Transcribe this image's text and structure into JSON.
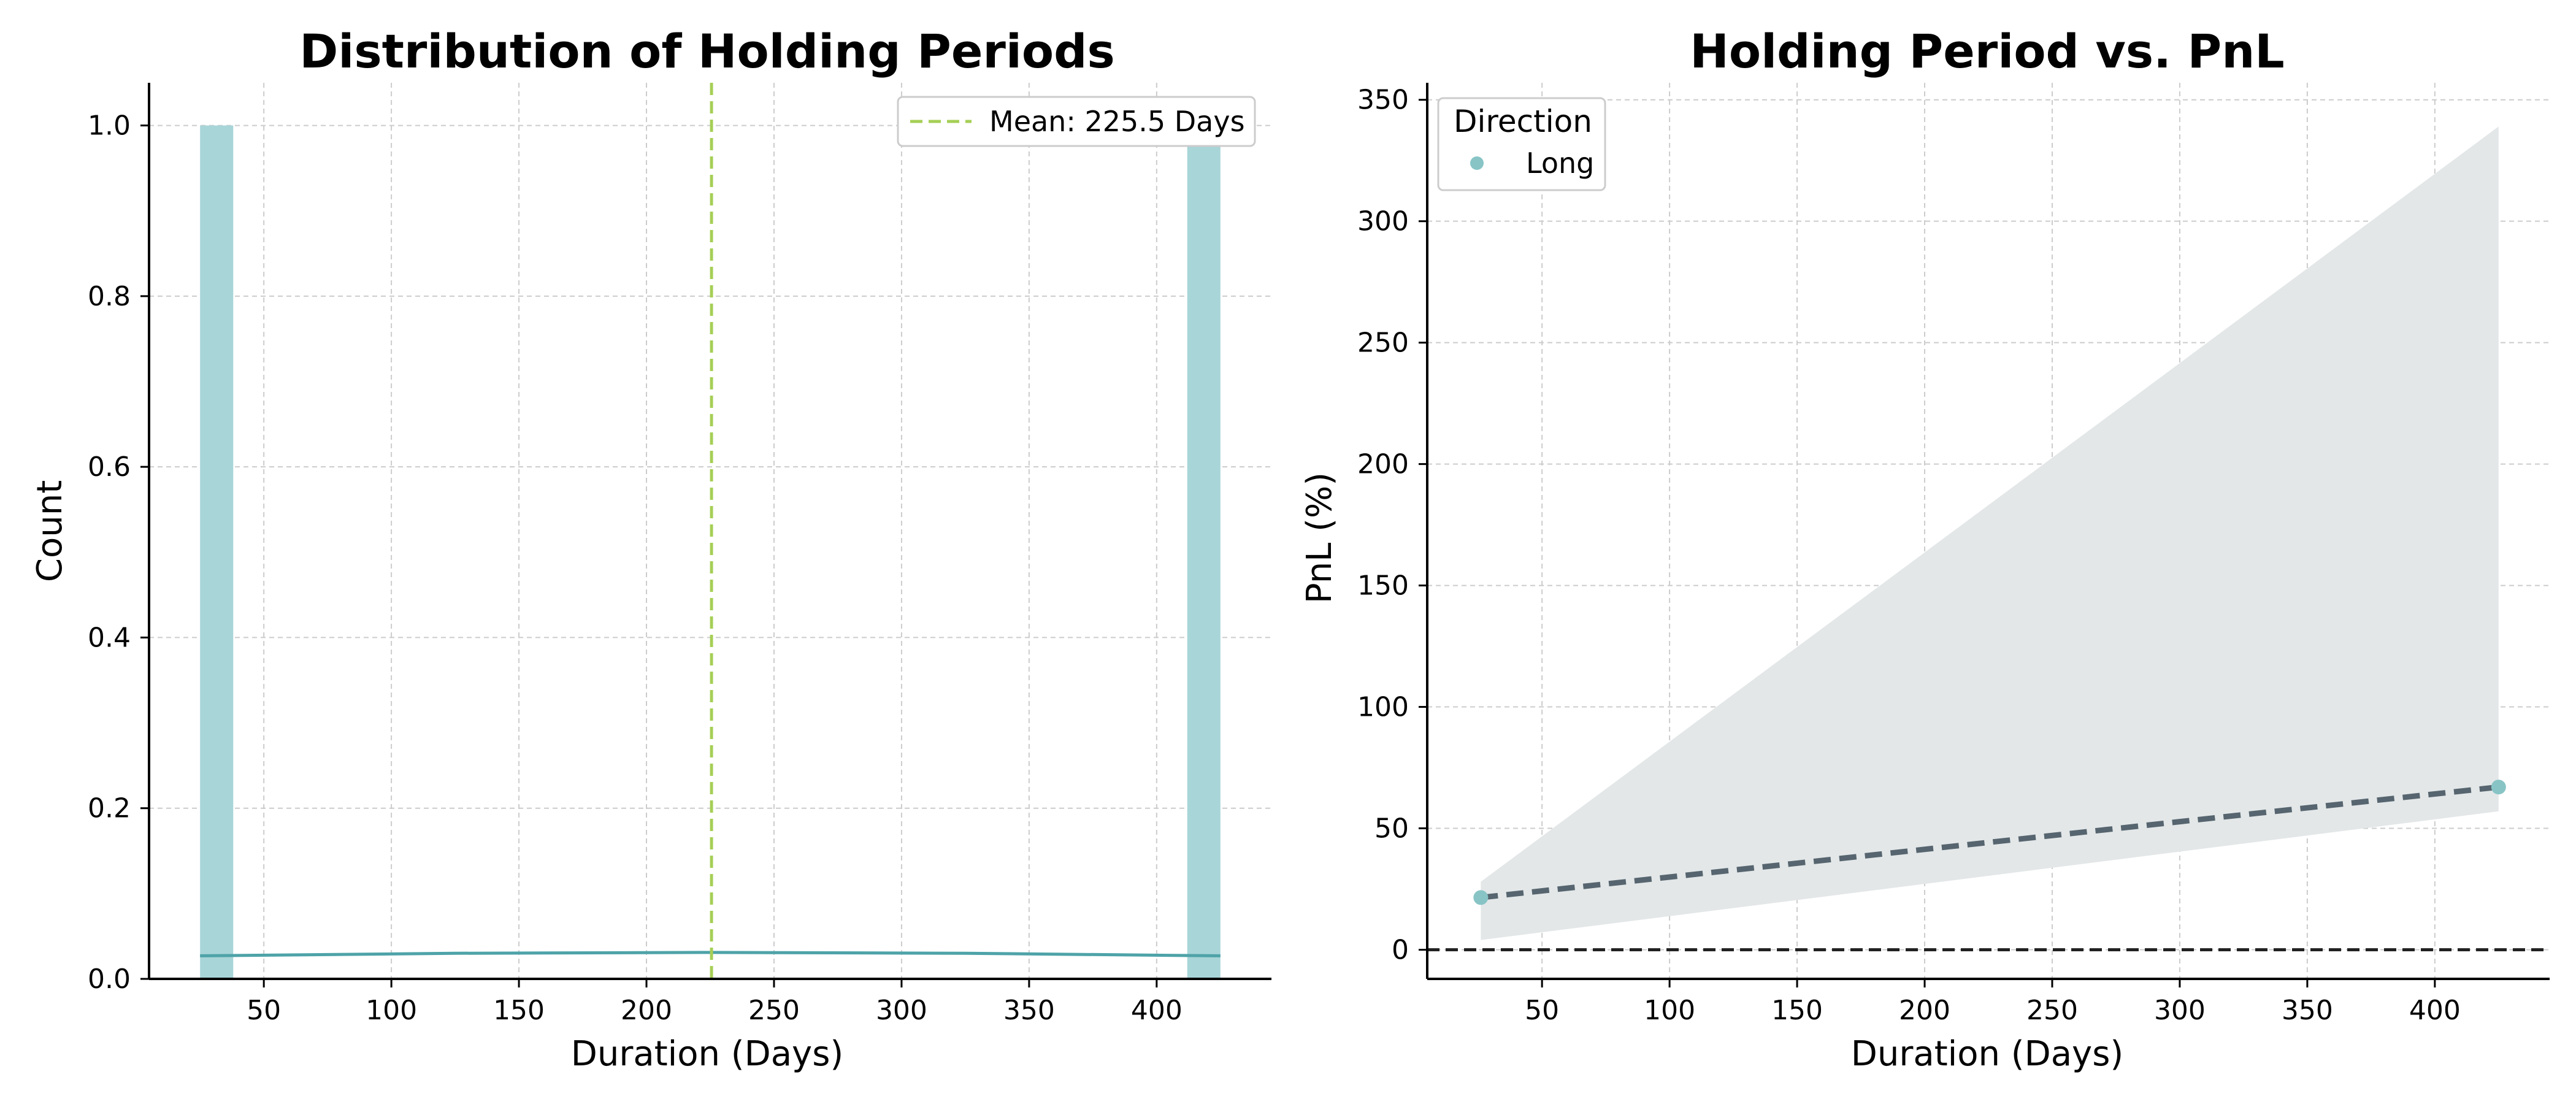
{
  "chart_data": [
    {
      "type": "bar",
      "title": "Distribution of Holding Periods",
      "xlabel": "Duration (Days)",
      "ylabel": "Count",
      "xlim": [
        5,
        445
      ],
      "ylim": [
        0,
        1.05
      ],
      "xticks": [
        "50",
        "100",
        "150",
        "200",
        "250",
        "300",
        "350",
        "400"
      ],
      "yticks": [
        "0.0",
        "0.2",
        "0.4",
        "0.6",
        "0.8",
        "1.0"
      ],
      "bins": [
        {
          "x_start": 25,
          "x_end": 38,
          "count": 1
        },
        {
          "x_start": 412,
          "x_end": 425,
          "count": 1
        }
      ],
      "kde_curve": {
        "x": [
          25,
          125,
          225,
          325,
          425
        ],
        "y": [
          0.027,
          0.03,
          0.031,
          0.03,
          0.027
        ]
      },
      "mean_line": {
        "value": 225.5,
        "label": "Mean: 225.5 Days",
        "color": "#a6cf56"
      },
      "bar_color": "#a8d5d8",
      "curve_color": "#4ea3a8",
      "grid": true,
      "legend_position": "top-right"
    },
    {
      "type": "scatter",
      "title": "Holding Period vs. PnL",
      "xlabel": "Duration (Days)",
      "ylabel": "PnL (%)",
      "xlim": [
        5,
        445
      ],
      "ylim": [
        -12,
        357
      ],
      "xticks": [
        "50",
        "100",
        "150",
        "200",
        "250",
        "300",
        "350",
        "400"
      ],
      "yticks": [
        "0",
        "50",
        "100",
        "150",
        "200",
        "250",
        "300",
        "350"
      ],
      "series": [
        {
          "name": "Long",
          "points": [
            {
              "x": 26,
              "y": 21.5
            },
            {
              "x": 425,
              "y": 67
            }
          ],
          "color": "#88c4c6"
        }
      ],
      "regression": {
        "x": [
          26,
          425
        ],
        "y": [
          21.5,
          67
        ],
        "color": "#56656f"
      },
      "confidence_band": {
        "x": [
          26,
          425
        ],
        "upper": [
          28,
          339
        ],
        "lower": [
          4,
          57
        ],
        "color": "#e3e7e8"
      },
      "zero_line": 0,
      "legend_title": "Direction",
      "legend_position": "top-left",
      "grid": true
    }
  ]
}
